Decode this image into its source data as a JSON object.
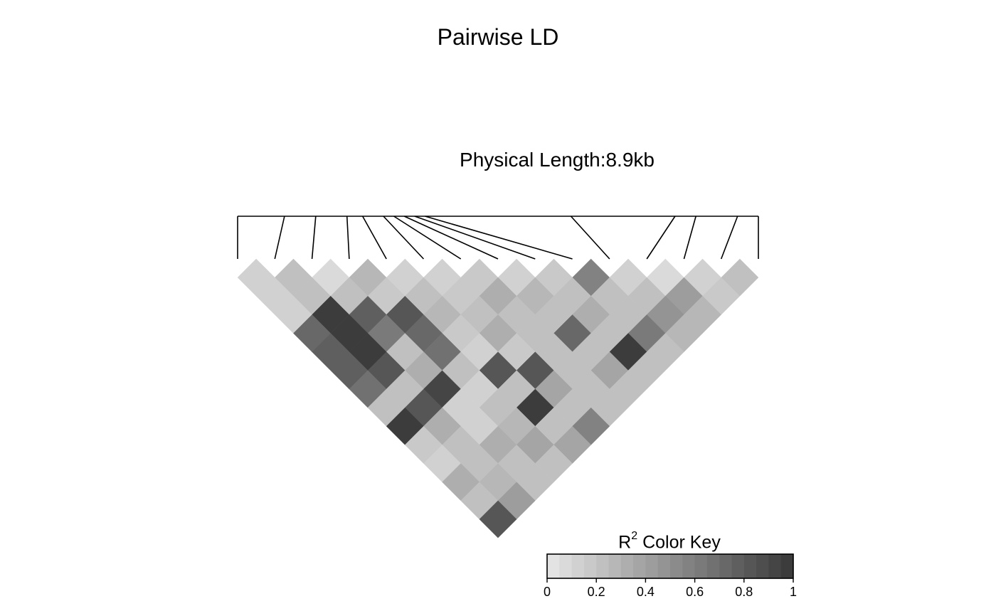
{
  "chart_data": {
    "type": "heatmap",
    "title": "Pairwise LD",
    "subtitle": "Physical Length:8.9kb",
    "n_snps": 15,
    "snp_relative_positions": [
      0.0,
      0.09,
      0.15,
      0.21,
      0.24,
      0.28,
      0.3,
      0.32,
      0.34,
      0.36,
      0.64,
      0.84,
      0.88,
      0.96,
      1.0
    ],
    "r2_matrix_rows": [
      [
        0.1,
        0.2,
        0.05,
        0.25,
        0.1,
        0.1,
        0.15,
        0.1,
        0.15,
        0.55,
        0.1,
        0.05,
        0.1,
        0.2
      ],
      [
        0.1,
        0.2,
        0.2,
        0.15,
        0.2,
        0.15,
        0.3,
        0.25,
        0.2,
        0.2,
        0.2,
        0.4,
        0.15
      ],
      [
        0.1,
        0.95,
        0.75,
        0.8,
        0.25,
        0.2,
        0.2,
        0.2,
        0.3,
        0.2,
        0.45,
        0.25
      ],
      [
        0.7,
        0.95,
        0.6,
        0.7,
        0.15,
        0.3,
        0.2,
        0.7,
        0.2,
        0.6,
        0.25
      ],
      [
        0.75,
        0.95,
        0.2,
        0.65,
        0.1,
        0.15,
        0.2,
        0.2,
        0.95,
        0.2
      ],
      [
        0.75,
        0.8,
        0.3,
        0.2,
        0.8,
        0.8,
        0.2,
        0.35,
        0.2
      ],
      [
        0.65,
        0.2,
        0.9,
        0.1,
        0.2,
        0.35,
        0.2,
        0.2
      ],
      [
        0.2,
        0.8,
        0.1,
        0.2,
        0.95,
        0.2,
        0.2
      ],
      [
        0.95,
        0.3,
        0.1,
        0.25,
        0.2,
        0.55
      ],
      [
        0.15,
        0.2,
        0.3,
        0.35,
        0.35
      ],
      [
        0.1,
        0.2,
        0.2,
        0.2
      ],
      [
        0.3,
        0.25,
        0.2
      ],
      [
        0.2,
        0.4
      ],
      [
        0.8
      ]
    ],
    "color_key": {
      "title_main": "R",
      "title_sup": "2",
      "title_rest": " Color Key",
      "range": [
        0,
        1
      ],
      "steps": 20,
      "tick_labels": [
        "0",
        "0.2",
        "0.4",
        "0.6",
        "0.8",
        "1"
      ],
      "color_low": "#e3e3e3",
      "color_high": "#3c3c3c"
    }
  }
}
